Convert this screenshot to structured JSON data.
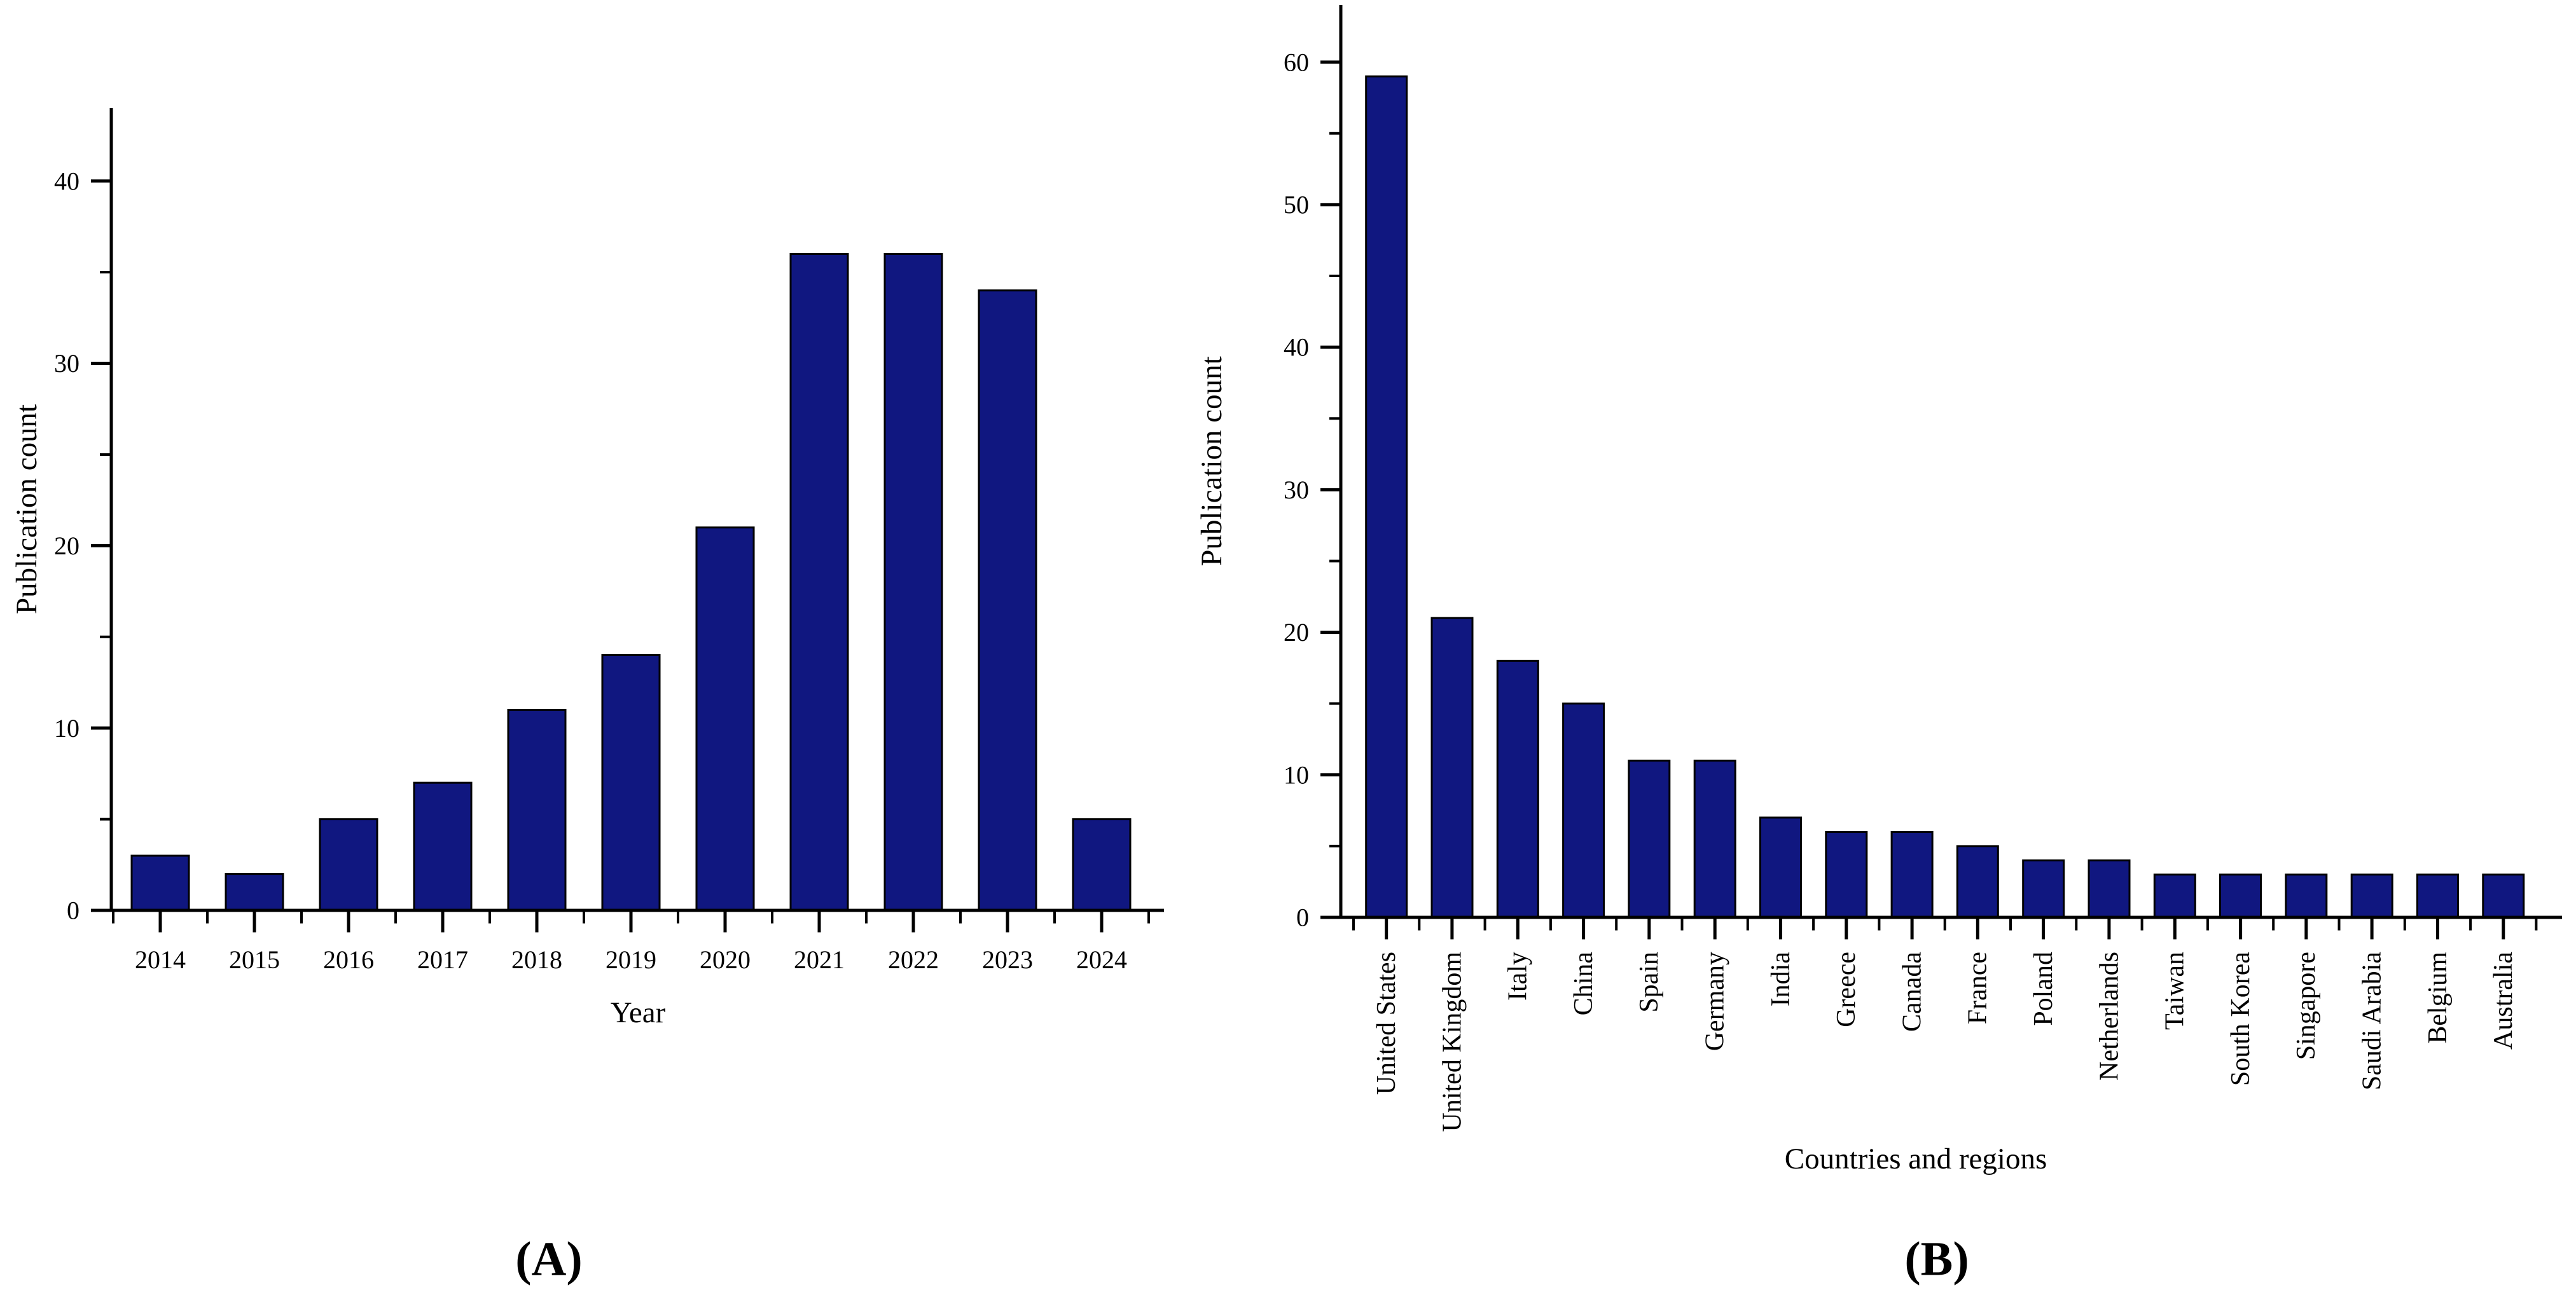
{
  "figure": {
    "background": "#ffffff",
    "bar_fill": "#101780",
    "bar_stroke": "#000000",
    "axis_color": "#000000",
    "text_color": "#000000"
  },
  "chart_data": [
    {
      "id": "panel-a",
      "type": "bar",
      "title": "",
      "caption": "(A)",
      "xlabel": "Year",
      "ylabel": "Publication count",
      "categories": [
        "2014",
        "2015",
        "2016",
        "2017",
        "2018",
        "2019",
        "2020",
        "2021",
        "2022",
        "2023",
        "2024"
      ],
      "values": [
        3,
        2,
        5,
        7,
        11,
        14,
        21,
        36,
        36,
        34,
        5
      ],
      "ylim": [
        0,
        44
      ],
      "yticks": [
        0,
        10,
        20,
        30,
        40
      ],
      "ytick_major_step": 10,
      "ytick_minor_step": 5,
      "grid": "off",
      "legend": "none",
      "bar_color": "#101780"
    },
    {
      "id": "panel-b",
      "type": "bar",
      "title": "",
      "caption": "(B)",
      "xlabel": "Countries and regions",
      "ylabel": "Publication count",
      "categories": [
        "United States",
        "United Kingdom",
        "Italy",
        "China",
        "Spain",
        "Germany",
        "India",
        "Greece",
        "Canada",
        "France",
        "Poland",
        "Netherlands",
        "Taiwan",
        "South Korea",
        "Singapore",
        "Saudi Arabia",
        "Belgium",
        "Australia"
      ],
      "values": [
        59,
        21,
        18,
        15,
        11,
        11,
        7,
        6,
        6,
        5,
        4,
        4,
        3,
        3,
        3,
        3,
        3,
        3
      ],
      "ylim": [
        0,
        64
      ],
      "yticks": [
        0,
        10,
        20,
        30,
        40,
        50,
        60
      ],
      "ytick_major_step": 10,
      "ytick_minor_step": 5,
      "grid": "off",
      "legend": "none",
      "bar_color": "#101780"
    }
  ]
}
